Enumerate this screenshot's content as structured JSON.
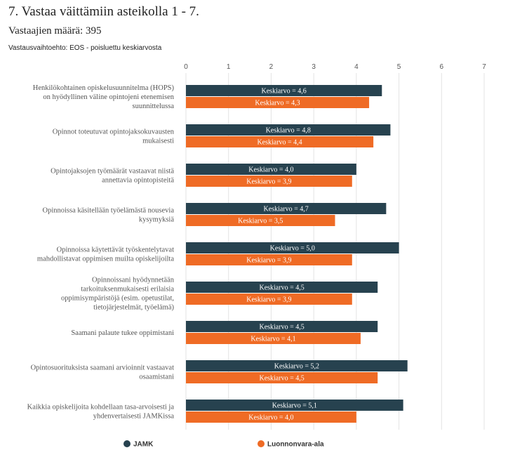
{
  "title": "7. Vastaa väittämiin asteikolla 1 - 7.",
  "respondents": "Vastaajien määrä: 395",
  "note": "Vastausvaihtoehto: EOS - poisluettu keskiarvosta",
  "chart_data": {
    "type": "bar",
    "orientation": "horizontal",
    "xlim": [
      0,
      7
    ],
    "ticks": [
      "0",
      "1",
      "2",
      "3",
      "4",
      "5",
      "6",
      "7"
    ],
    "grid": true,
    "legend_position": "bottom",
    "label_prefix": "Keskiarvo = ",
    "categories": [
      [
        "Henkilökohtainen opiskelusuunnitelma (HOPS)",
        "on hyödyllinen väline opintojeni etenemisen",
        "suunnittelussa"
      ],
      [
        "Opinnot toteutuvat opintojaksokuvausten",
        "mukaisesti"
      ],
      [
        "Opintojaksojen työmäärät vastaavat niistä",
        "annettavia opintopisteitä"
      ],
      [
        "Opinnoissa käsitellään työelämästä nousevia",
        "kysymyksiä"
      ],
      [
        "Opinnoissa käytettävät työskentelytavat",
        "mahdollistavat oppimisen muilta opiskelijoilta"
      ],
      [
        "Opinnoissani hyödynnetään",
        "tarkoituksenmukaisesti erilaisia",
        "oppimisympäristöjä (esim. opetustilat,",
        "tietojärjestelmät, työelämä)"
      ],
      [
        "Saamani palaute tukee oppimistani"
      ],
      [
        "Opintosuorituksista saamani arvioinnit vastaavat",
        "osaamistani"
      ],
      [
        "Kaikkia opiskelijoita kohdellaan tasa-arvoisesti ja",
        "yhdenvertaisesti JAMKissa"
      ]
    ],
    "series": [
      {
        "name": "JAMK",
        "color": "#27424f",
        "values": [
          4.6,
          4.8,
          4.0,
          4.7,
          5.0,
          4.5,
          4.5,
          5.2,
          5.1
        ],
        "labels": [
          "4,6",
          "4,8",
          "4,0",
          "4,7",
          "5,0",
          "4,5",
          "4,5",
          "5,2",
          "5,1"
        ]
      },
      {
        "name": "Luonnonvara-ala",
        "color": "#ef6b25",
        "values": [
          4.3,
          4.4,
          3.9,
          3.5,
          3.9,
          3.9,
          4.1,
          4.5,
          4.0
        ],
        "labels": [
          "4,3",
          "4,4",
          "3,9",
          "3,5",
          "3,9",
          "3,9",
          "4,1",
          "4,5",
          "4,0"
        ]
      }
    ]
  }
}
